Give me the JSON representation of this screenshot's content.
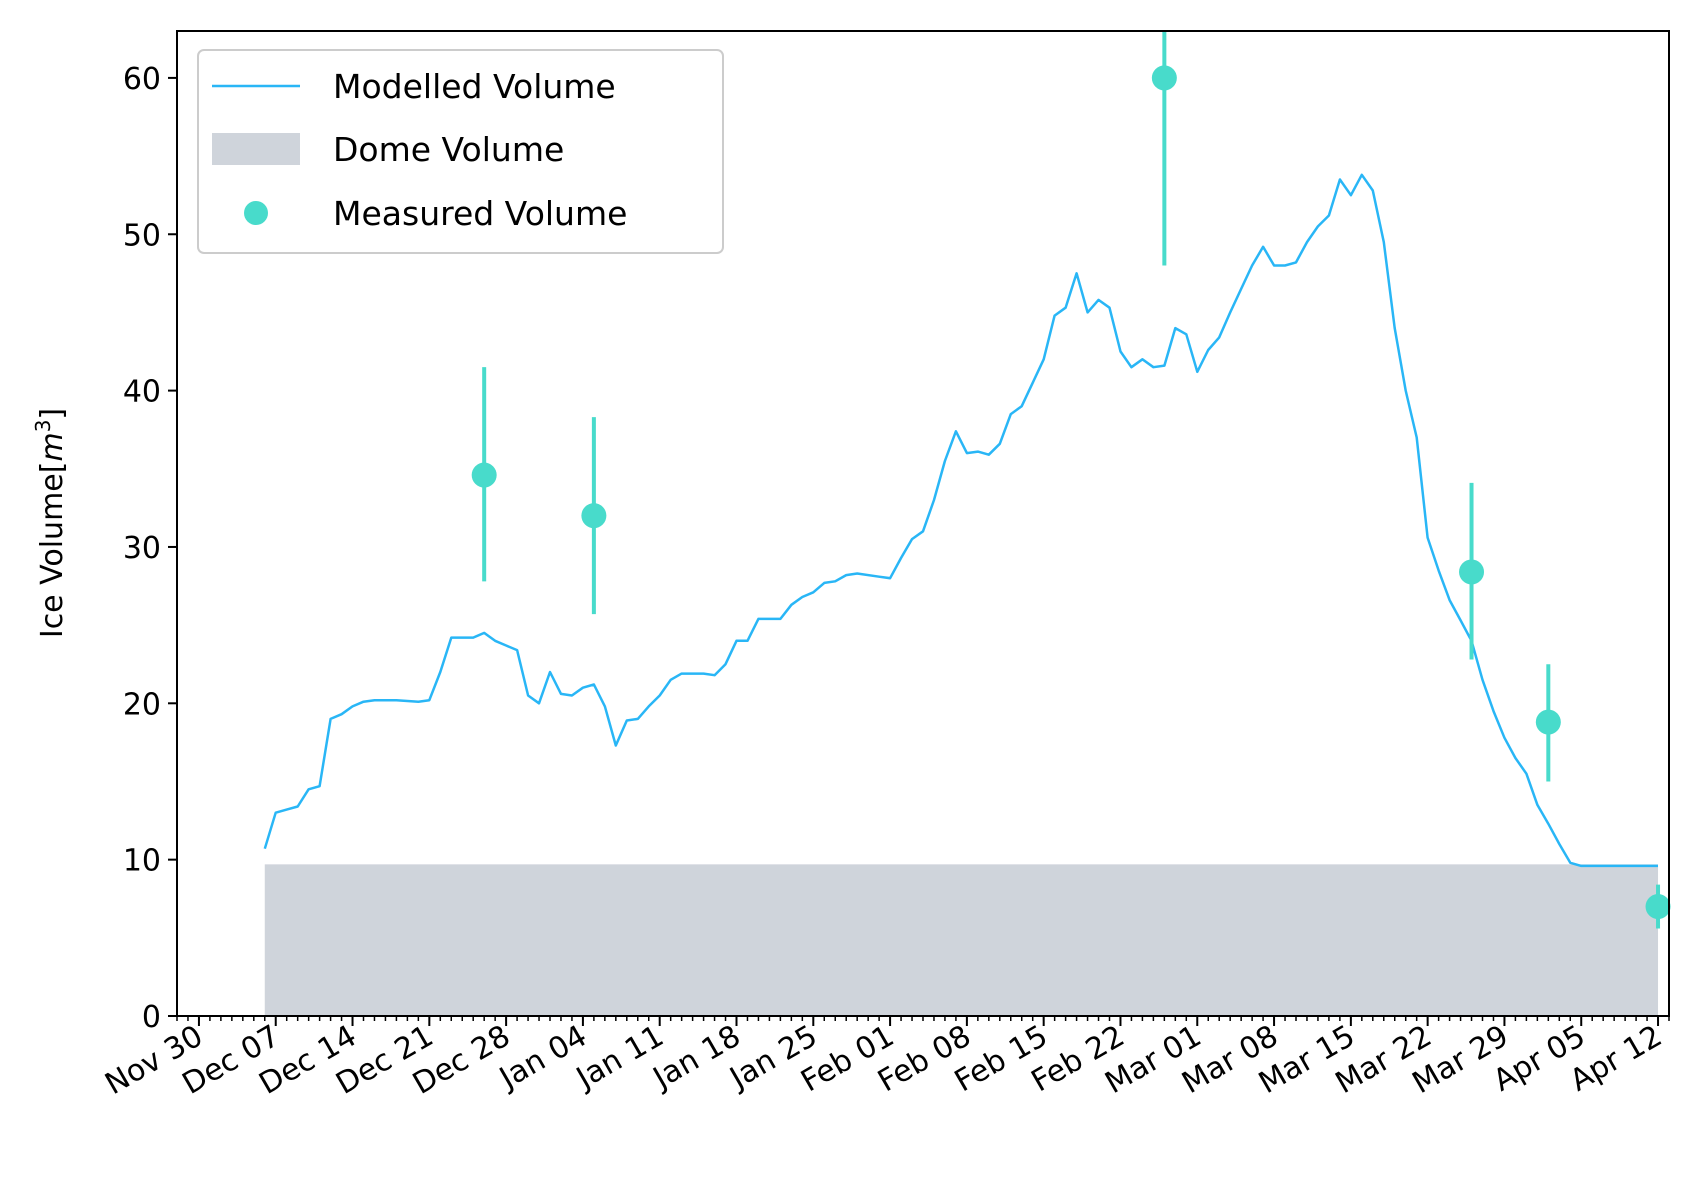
{
  "chart_data": {
    "type": "line",
    "ylabel_main": "Ice Volume[",
    "ylabel_var": "m",
    "ylabel_exp": "3",
    "ylabel_close": "]",
    "ylim": [
      0,
      63
    ],
    "yticks": [
      0,
      10,
      20,
      30,
      40,
      50,
      60
    ],
    "xlim_days": [
      -2,
      134
    ],
    "x_tick_labels": [
      "Nov 30",
      "Dec 07",
      "Dec 14",
      "Dec 21",
      "Dec 28",
      "Jan 04",
      "Jan 11",
      "Jan 18",
      "Jan 25",
      "Feb 01",
      "Feb 08",
      "Feb 15",
      "Feb 22",
      "Mar 01",
      "Mar 08",
      "Mar 15",
      "Mar 22",
      "Mar 29",
      "Apr 05",
      "Apr 12"
    ],
    "legend": {
      "position": "top-left",
      "entries": [
        "Modelled Volume",
        "Dome Volume",
        "Measured Volume"
      ]
    },
    "colors": {
      "modelled": "#29b6f6",
      "dome": "#cfd4db",
      "measured": "#48dbcb"
    },
    "dome": {
      "x_start": "Dec 06",
      "x_end": "Apr 12",
      "value": 9.7
    },
    "modelled": [
      [
        "Dec 06",
        10.7
      ],
      [
        "Dec 06",
        10.7
      ],
      [
        "Dec 07",
        13.0
      ],
      [
        "Dec 08",
        13.2
      ],
      [
        "Dec 09",
        13.4
      ],
      [
        "Dec 10",
        14.5
      ],
      [
        "Dec 11",
        14.7
      ],
      [
        "Dec 12",
        19.0
      ],
      [
        "Dec 13",
        19.3
      ],
      [
        "Dec 14",
        19.8
      ],
      [
        "Dec 15",
        20.1
      ],
      [
        "Dec 16",
        20.2
      ],
      [
        "Dec 18",
        20.2
      ],
      [
        "Dec 20",
        20.1
      ],
      [
        "Dec 21",
        20.2
      ],
      [
        "Dec 22",
        22.0
      ],
      [
        "Dec 23",
        24.2
      ],
      [
        "Dec 25",
        24.2
      ],
      [
        "Dec 26",
        24.5
      ],
      [
        "Dec 27",
        24.0
      ],
      [
        "Dec 28",
        23.7
      ],
      [
        "Dec 29",
        23.4
      ],
      [
        "Dec 30",
        20.5
      ],
      [
        "Dec 31",
        20.0
      ],
      [
        "Jan 01",
        22.0
      ],
      [
        "Jan 02",
        20.6
      ],
      [
        "Jan 03",
        20.5
      ],
      [
        "Jan 04",
        21.0
      ],
      [
        "Jan 05",
        21.2
      ],
      [
        "Jan 06",
        19.8
      ],
      [
        "Jan 07",
        17.3
      ],
      [
        "Jan 08",
        18.9
      ],
      [
        "Jan 09",
        19.0
      ],
      [
        "Jan 10",
        19.8
      ],
      [
        "Jan 11",
        20.5
      ],
      [
        "Jan 12",
        21.5
      ],
      [
        "Jan 13",
        21.9
      ],
      [
        "Jan 15",
        21.9
      ],
      [
        "Jan 16",
        21.8
      ],
      [
        "Jan 17",
        22.5
      ],
      [
        "Jan 18",
        24.0
      ],
      [
        "Jan 19",
        24.0
      ],
      [
        "Jan 20",
        25.4
      ],
      [
        "Jan 21",
        25.4
      ],
      [
        "Jan 22",
        25.4
      ],
      [
        "Jan 23",
        26.3
      ],
      [
        "Jan 24",
        26.8
      ],
      [
        "Jan 25",
        27.1
      ],
      [
        "Jan 26",
        27.7
      ],
      [
        "Jan 27",
        27.8
      ],
      [
        "Jan 28",
        28.2
      ],
      [
        "Jan 29",
        28.3
      ],
      [
        "Jan 31",
        28.1
      ],
      [
        "Feb 01",
        28.0
      ],
      [
        "Feb 02",
        29.3
      ],
      [
        "Feb 03",
        30.5
      ],
      [
        "Feb 04",
        31.0
      ],
      [
        "Feb 05",
        33.0
      ],
      [
        "Feb 06",
        35.5
      ],
      [
        "Feb 07",
        37.4
      ],
      [
        "Feb 08",
        36.0
      ],
      [
        "Feb 09",
        36.1
      ],
      [
        "Feb 10",
        35.9
      ],
      [
        "Feb 11",
        36.6
      ],
      [
        "Feb 12",
        38.5
      ],
      [
        "Feb 13",
        39.0
      ],
      [
        "Feb 14",
        40.5
      ],
      [
        "Feb 15",
        42.0
      ],
      [
        "Feb 16",
        44.8
      ],
      [
        "Feb 17",
        45.3
      ],
      [
        "Feb 18",
        47.5
      ],
      [
        "Feb 19",
        45.0
      ],
      [
        "Feb 20",
        45.8
      ],
      [
        "Feb 21",
        45.3
      ],
      [
        "Feb 22",
        42.5
      ],
      [
        "Feb 23",
        41.5
      ],
      [
        "Feb 24",
        42.0
      ],
      [
        "Feb 25",
        41.5
      ],
      [
        "Feb 26",
        41.6
      ],
      [
        "Feb 27",
        44.0
      ],
      [
        "Feb 28",
        43.6
      ],
      [
        "Mar 01",
        41.2
      ],
      [
        "Mar 02",
        42.6
      ],
      [
        "Mar 03",
        43.4
      ],
      [
        "Mar 04",
        45.0
      ],
      [
        "Mar 05",
        46.5
      ],
      [
        "Mar 06",
        48.0
      ],
      [
        "Mar 07",
        49.2
      ],
      [
        "Mar 08",
        48.0
      ],
      [
        "Mar 09",
        48.0
      ],
      [
        "Mar 10",
        48.2
      ],
      [
        "Mar 11",
        49.5
      ],
      [
        "Mar 12",
        50.5
      ],
      [
        "Mar 13",
        51.2
      ],
      [
        "Mar 14",
        53.5
      ],
      [
        "Mar 15",
        52.5
      ],
      [
        "Mar 16",
        53.8
      ],
      [
        "Mar 17",
        52.8
      ],
      [
        "Mar 18",
        49.5
      ],
      [
        "Mar 19",
        44.0
      ],
      [
        "Mar 20",
        40.0
      ],
      [
        "Mar 21",
        37.0
      ],
      [
        "Mar 22",
        30.6
      ],
      [
        "Mar 23",
        28.5
      ],
      [
        "Mar 24",
        26.6
      ],
      [
        "Mar 25",
        25.3
      ],
      [
        "Mar 26",
        24.0
      ],
      [
        "Mar 27",
        21.5
      ],
      [
        "Mar 28",
        19.5
      ],
      [
        "Mar 29",
        17.8
      ],
      [
        "Mar 30",
        16.5
      ],
      [
        "Mar 31",
        15.5
      ],
      [
        "Apr 01",
        13.5
      ],
      [
        "Apr 02",
        12.3
      ],
      [
        "Apr 03",
        11.0
      ],
      [
        "Apr 04",
        9.8
      ],
      [
        "Apr 05",
        9.6
      ],
      [
        "Apr 12",
        9.6
      ]
    ],
    "measured": [
      {
        "x": "Dec 26",
        "y": 34.6,
        "low": 27.8,
        "high": 41.5
      },
      {
        "x": "Jan 05",
        "y": 32.0,
        "low": 25.7,
        "high": 38.3
      },
      {
        "x": "Feb 26",
        "y": 60.0,
        "low": 48.0,
        "high": 63.0
      },
      {
        "x": "Mar 26",
        "y": 28.4,
        "low": 22.8,
        "high": 34.1
      },
      {
        "x": "Apr 02",
        "y": 18.8,
        "low": 15.0,
        "high": 22.5
      },
      {
        "x": "Apr 12",
        "y": 7.0,
        "low": 5.6,
        "high": 8.4
      }
    ]
  }
}
